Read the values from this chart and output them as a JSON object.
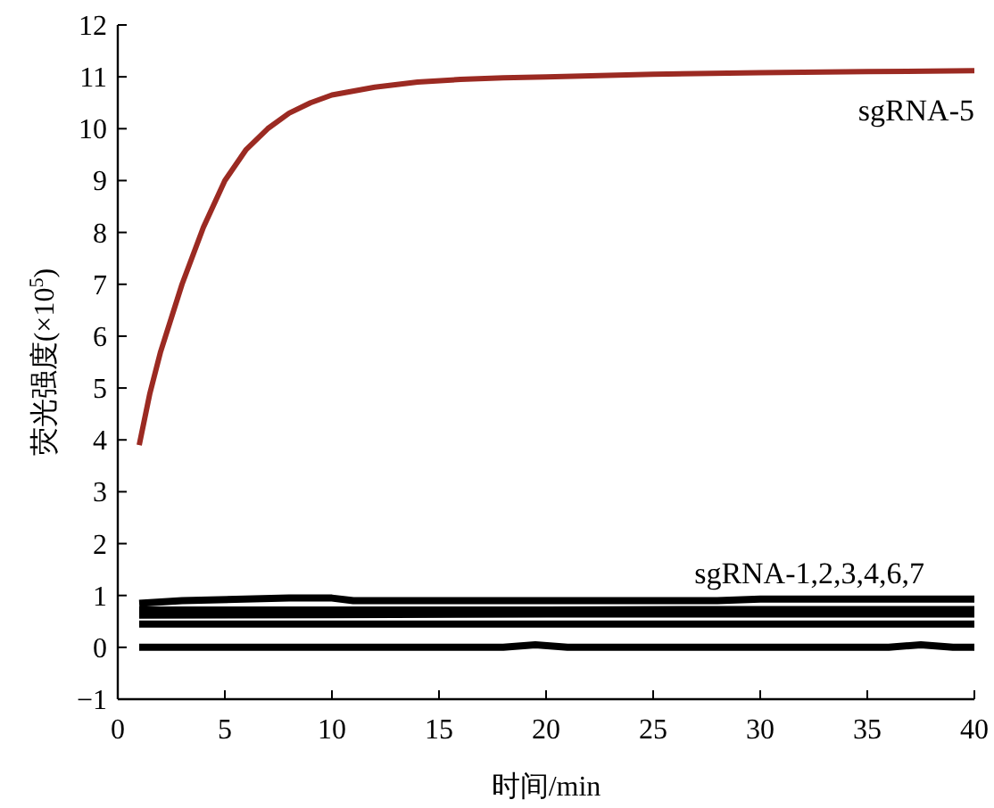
{
  "chart_data": {
    "type": "line",
    "xlabel": "时间/min",
    "ylabel": "荧光强度(×10$^{5}$)",
    "xlim": [
      0,
      40
    ],
    "ylim": [
      -1,
      12
    ],
    "xticks": [
      0,
      5,
      10,
      15,
      20,
      25,
      30,
      35,
      40
    ],
    "yticks": [
      -1,
      0,
      1,
      2,
      3,
      4,
      5,
      6,
      7,
      8,
      9,
      10,
      11,
      12
    ],
    "series": [
      {
        "name": "sgRNA-5",
        "color": "#9b2a22",
        "x": [
          1,
          1.5,
          2,
          3,
          4,
          5,
          6,
          7,
          8,
          9,
          10,
          12,
          14,
          16,
          18,
          20,
          25,
          30,
          35,
          40
        ],
        "values": [
          3.9,
          4.9,
          5.7,
          7.0,
          8.1,
          9.0,
          9.6,
          10.0,
          10.3,
          10.5,
          10.65,
          10.8,
          10.9,
          10.95,
          10.98,
          11.0,
          11.05,
          11.08,
          11.1,
          11.12
        ]
      },
      {
        "color": "#000000",
        "x": [
          1,
          3,
          8,
          10,
          11,
          28,
          30,
          40
        ],
        "values": [
          0.85,
          0.9,
          0.95,
          0.95,
          0.9,
          0.9,
          0.93,
          0.93
        ]
      },
      {
        "color": "#000000",
        "x": [
          1,
          10,
          20,
          30,
          40
        ],
        "values": [
          0.72,
          0.72,
          0.72,
          0.73,
          0.73
        ]
      },
      {
        "color": "#000000",
        "x": [
          1,
          10,
          20,
          30,
          40
        ],
        "values": [
          0.62,
          0.63,
          0.64,
          0.64,
          0.64
        ]
      },
      {
        "color": "#000000",
        "x": [
          1,
          10,
          20,
          30,
          40
        ],
        "values": [
          0.45,
          0.45,
          0.45,
          0.45,
          0.45
        ]
      },
      {
        "color": "#000000",
        "x": [
          1,
          10,
          18,
          19.5,
          21,
          30,
          36,
          37.5,
          39,
          40
        ],
        "values": [
          0.0,
          0.0,
          0.0,
          0.05,
          0.0,
          0.0,
          0.0,
          0.05,
          0.0,
          0.0
        ]
      }
    ],
    "annotations": [
      "sgRNA-1,2,3,4,6,7"
    ]
  }
}
